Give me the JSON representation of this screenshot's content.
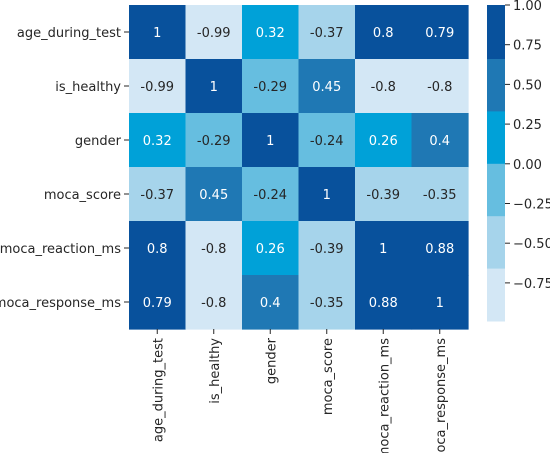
{
  "chart_data": {
    "type": "heatmap",
    "rows": [
      "age_during_test",
      "is_healthy",
      "gender",
      "moca_score",
      "moca_reaction_ms",
      "moca_response_ms"
    ],
    "columns": [
      "age_during_test",
      "is_healthy",
      "gender",
      "moca_score",
      "moca_reaction_ms",
      "moca_response_ms"
    ],
    "values": [
      [
        1,
        -0.99,
        0.32,
        -0.37,
        0.8,
        0.79
      ],
      [
        -0.99,
        1,
        -0.29,
        0.45,
        -0.8,
        -0.8
      ],
      [
        0.32,
        -0.29,
        1,
        -0.24,
        0.26,
        0.4
      ],
      [
        -0.37,
        0.45,
        -0.24,
        1,
        -0.39,
        -0.35
      ],
      [
        0.8,
        -0.8,
        0.26,
        -0.39,
        1,
        0.88
      ],
      [
        0.79,
        -0.8,
        0.4,
        -0.35,
        0.88,
        1
      ]
    ],
    "value_labels": [
      [
        "1",
        "-0.99",
        "0.32",
        "-0.37",
        "0.8",
        "0.79"
      ],
      [
        "-0.99",
        "1",
        "-0.29",
        "0.45",
        "-0.8",
        "-0.8"
      ],
      [
        "0.32",
        "-0.29",
        "1",
        "-0.24",
        "0.26",
        "0.4"
      ],
      [
        "-0.37",
        "0.45",
        "-0.24",
        "1",
        "-0.39",
        "-0.35"
      ],
      [
        "0.8",
        "-0.8",
        "0.26",
        "-0.39",
        "1",
        "0.88"
      ],
      [
        "0.79",
        "-0.8",
        "0.4",
        "-0.35",
        "0.88",
        "1"
      ]
    ],
    "colorbar": {
      "ticks": [
        1.0,
        0.75,
        0.5,
        0.25,
        0.0,
        -0.25,
        -0.5,
        -0.75
      ],
      "tick_labels": [
        "1.00",
        "0.75",
        "0.50",
        "0.25",
        "0.00",
        "−0.25",
        "−0.50",
        "−0.75"
      ],
      "range": [
        -0.99,
        1.0
      ],
      "bins": [
        {
          "lo": 0.66,
          "hi": 1.0,
          "color": "#08519c"
        },
        {
          "lo": 0.33,
          "hi": 0.66,
          "color": "#1f78b4"
        },
        {
          "lo": 0.0,
          "hi": 0.33,
          "color": "#00a1d8"
        },
        {
          "lo": -0.33,
          "hi": 0.0,
          "color": "#66bee0"
        },
        {
          "lo": -0.66,
          "hi": -0.33,
          "color": "#a6d4eb"
        },
        {
          "lo": -0.99,
          "hi": -0.66,
          "color": "#d3e7f5"
        }
      ]
    },
    "cell_text_colors": {
      "light": "#ffffff",
      "dark": "#262626"
    }
  }
}
